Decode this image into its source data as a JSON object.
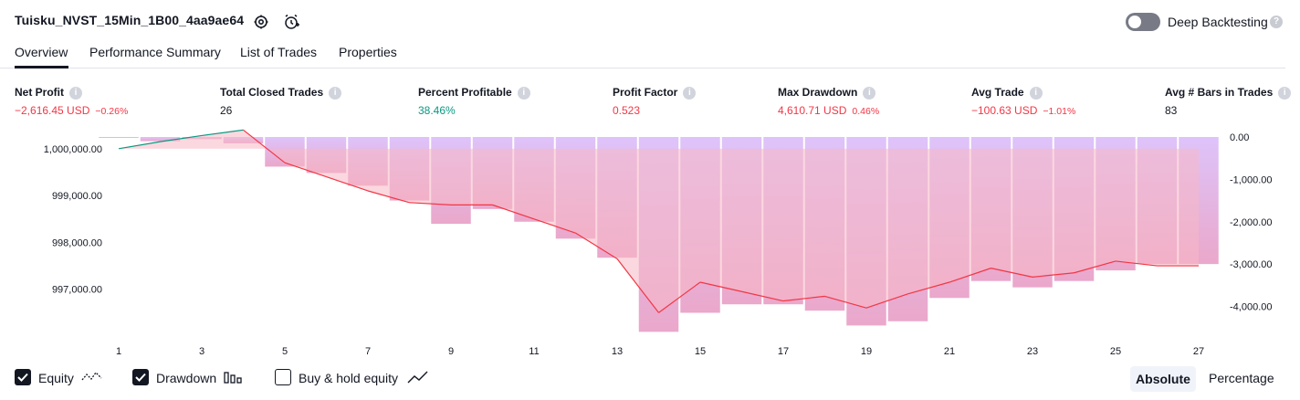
{
  "header": {
    "strategy_name": "Tuisku_NVST_15Min_1B00_4aa9ae64",
    "settings_icon": "gear-icon",
    "alert_icon": "alarm-add-icon",
    "deep_backtesting_label": "Deep Backtesting",
    "deep_backtesting_enabled": false,
    "help_mark": "?"
  },
  "tabs": [
    {
      "label": "Overview",
      "active": true
    },
    {
      "label": "Performance Summary",
      "active": false
    },
    {
      "label": "List of Trades",
      "active": false
    },
    {
      "label": "Properties",
      "active": false
    }
  ],
  "metrics": [
    {
      "label": "Net Profit",
      "value": "−2,616.45 USD",
      "pct": "−0.26%",
      "color": "#f23645"
    },
    {
      "label": "Total Closed Trades",
      "value": "26",
      "pct": "",
      "color": "#131722"
    },
    {
      "label": "Percent Profitable",
      "value": "38.46%",
      "pct": "",
      "color": "#089981"
    },
    {
      "label": "Profit Factor",
      "value": "0.523",
      "pct": "",
      "color": "#f23645"
    },
    {
      "label": "Max Drawdown",
      "value": "4,610.71 USD",
      "pct": "0.46%",
      "color": "#f23645"
    },
    {
      "label": "Avg Trade",
      "value": "−100.63 USD",
      "pct": "−1.01%",
      "color": "#f23645"
    },
    {
      "label": "Avg # Bars in Trades",
      "value": "83",
      "pct": "",
      "color": "#131722"
    }
  ],
  "info_mark": "i",
  "chart_data": {
    "type": "bar",
    "x_ticks": [
      "1",
      "3",
      "5",
      "7",
      "9",
      "11",
      "13",
      "15",
      "17",
      "19",
      "21",
      "23",
      "25",
      "27"
    ],
    "left_axis_ticks": [
      "1,000,000.00",
      "999,000.00",
      "998,000.00",
      "997,000.00"
    ],
    "right_axis_ticks": [
      "0.00",
      "-1,000.00",
      "-2,000.00",
      "-3,000.00",
      "-4,000.00"
    ],
    "left_ylim": [
      996000,
      1000250
    ],
    "right_ylim": [
      -4700,
      0
    ],
    "trades": [
      1,
      2,
      3,
      4,
      5,
      6,
      7,
      8,
      9,
      10,
      11,
      12,
      13,
      14,
      15,
      16,
      17,
      18,
      19,
      20,
      21,
      22,
      23,
      24,
      25,
      26,
      27
    ],
    "drawdown_bars": [
      0,
      -100,
      -50,
      -150,
      -700,
      -850,
      -1150,
      -1500,
      -2050,
      -1700,
      -2000,
      -2400,
      -2850,
      -4600,
      -4150,
      -3950,
      -3950,
      -4100,
      -4450,
      -4350,
      -3800,
      -3400,
      -3550,
      -3400,
      -3150,
      -3000,
      -3000
    ],
    "equity": [
      1000000,
      1000150,
      1000280,
      1000400,
      999700,
      999400,
      999100,
      998850,
      998800,
      998800,
      998500,
      998200,
      997650,
      996500,
      997150,
      996950,
      996750,
      996850,
      996600,
      996900,
      997150,
      997450,
      997260,
      997350,
      997600,
      997500,
      997500
    ],
    "drawdown_color": "#d6b3f5",
    "equity_up_color": "#089981",
    "equity_down_color": "#f23645",
    "area_fill_color": "#f7b8c4"
  },
  "footer": {
    "equity_label": "Equity",
    "equity_checked": true,
    "drawdown_label": "Drawdown",
    "drawdown_checked": true,
    "buyhold_label": "Buy & hold equity",
    "buyhold_checked": false,
    "absolute_label": "Absolute",
    "percentage_label": "Percentage"
  }
}
